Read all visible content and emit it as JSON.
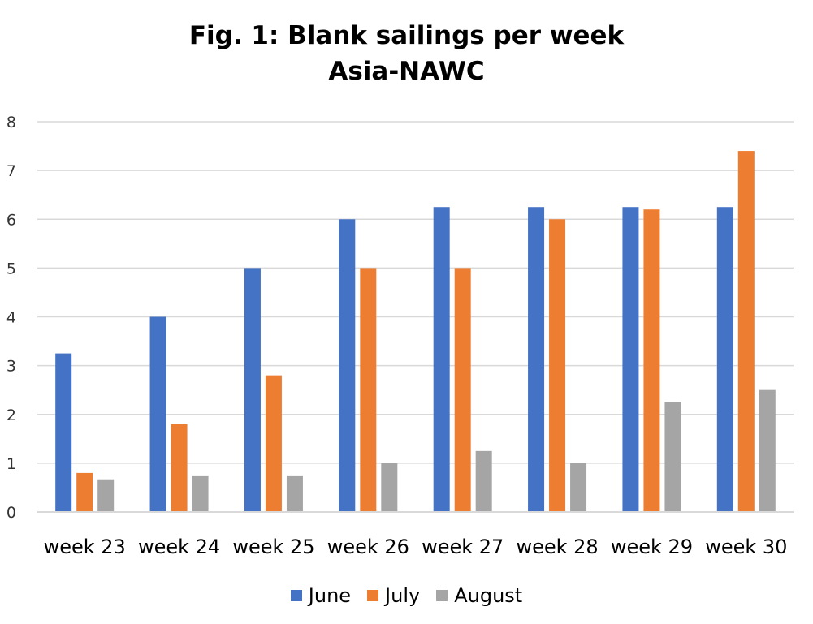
{
  "chart_data": {
    "type": "bar",
    "title": [
      "Fig. 1: Blank sailings per week",
      "Asia-NAWC"
    ],
    "categories": [
      "week 23",
      "week 24",
      "week 25",
      "week 26",
      "week 27",
      "week 28",
      "week 29",
      "week 30"
    ],
    "series": [
      {
        "name": "June",
        "color": "#4472C4",
        "values": [
          3.25,
          4,
          5,
          6,
          6.25,
          6.25,
          6.25,
          6.25
        ]
      },
      {
        "name": "July",
        "color": "#ED7D31",
        "values": [
          0.8,
          1.8,
          2.8,
          5,
          5,
          6,
          6.2,
          7.4
        ]
      },
      {
        "name": "August",
        "color": "#A5A5A5",
        "values": [
          0.67,
          0.75,
          0.75,
          1,
          1.25,
          1,
          2.25,
          2.5
        ]
      }
    ],
    "xlabel": "",
    "ylabel": "",
    "ylim": [
      0,
      8
    ],
    "yticks": [
      "0",
      "1",
      "2",
      "3",
      "4",
      "5",
      "6",
      "7",
      "8"
    ],
    "grid": true,
    "gridline_color": "#D9D9D9",
    "legend_position": "bottom"
  }
}
